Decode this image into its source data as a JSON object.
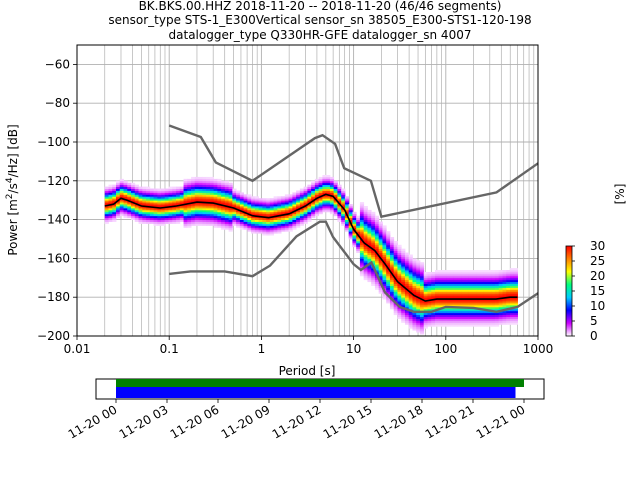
{
  "header": {
    "title_lines": [
      "BK.BKS.00.HHZ   2018-11-20 -- 2018-11-20  (46/46 segments)",
      "sensor_type STS-1_E300Vertical sensor_sn 38505_E300-STS1-120-198",
      "datalogger_type Q330HR-GFE datalogger_sn 4007"
    ]
  },
  "chart_data": {
    "type": "heatmap",
    "x_scale": "log",
    "xlim": [
      0.01,
      1000
    ],
    "ylim": [
      -200,
      -50
    ],
    "grid": true,
    "xlabel": "Period [s]",
    "ylabel": "Power [$m^2/s^4/Hz$] [dB]",
    "x_ticks": [
      0.01,
      0.1,
      1,
      10,
      100,
      1000
    ],
    "x_tick_labels": [
      "0.01",
      "0.1",
      "1",
      "10",
      "100",
      "1000"
    ],
    "y_ticks": [
      -200,
      -180,
      -160,
      -140,
      -120,
      -100,
      -80,
      -60
    ],
    "y_tick_labels": [
      "−200",
      "−180",
      "−160",
      "−140",
      "−120",
      "−100",
      "−80",
      "−60"
    ],
    "noise_models": [
      {
        "type": "NHNM",
        "color": "#666666",
        "points": [
          [
            0.1,
            -91.5
          ],
          [
            0.22,
            -97.4
          ],
          [
            0.32,
            -110.5
          ],
          [
            0.8,
            -120
          ],
          [
            3.8,
            -98
          ],
          [
            4.6,
            -96.5
          ],
          [
            6.3,
            -101
          ],
          [
            7.9,
            -113.5
          ],
          [
            15.4,
            -120
          ],
          [
            20,
            -138.5
          ],
          [
            354.8,
            -126
          ],
          [
            1000,
            -111
          ]
        ]
      },
      {
        "type": "NLNM",
        "color": "#666666",
        "points": [
          [
            0.1,
            -168
          ],
          [
            0.17,
            -166.7
          ],
          [
            0.4,
            -166.7
          ],
          [
            0.8,
            -169.2
          ],
          [
            1.24,
            -163.7
          ],
          [
            2.4,
            -148.6
          ],
          [
            4.3,
            -141.1
          ],
          [
            5,
            -141.1
          ],
          [
            6,
            -149
          ],
          [
            10,
            -163
          ],
          [
            12,
            -166
          ],
          [
            15.6,
            -162.1
          ],
          [
            21.9,
            -177.5
          ],
          [
            31.6,
            -185
          ],
          [
            45,
            -187.5
          ],
          [
            70,
            -187.5
          ],
          [
            100,
            -185
          ],
          [
            200,
            -185.5
          ],
          [
            354.8,
            -187.5
          ],
          [
            600,
            -185
          ],
          [
            1000,
            -178
          ]
        ]
      }
    ],
    "mode_curve": [
      [
        0.02,
        -133
      ],
      [
        0.025,
        -132
      ],
      [
        0.03,
        -129
      ],
      [
        0.035,
        -130
      ],
      [
        0.05,
        -133
      ],
      [
        0.08,
        -134
      ],
      [
        0.12,
        -133
      ],
      [
        0.2,
        -131
      ],
      [
        0.3,
        -131.5
      ],
      [
        0.5,
        -134
      ],
      [
        0.8,
        -138
      ],
      [
        1.2,
        -139
      ],
      [
        2,
        -137
      ],
      [
        3,
        -133
      ],
      [
        4,
        -129
      ],
      [
        5,
        -127
      ],
      [
        6,
        -128
      ],
      [
        8,
        -135
      ],
      [
        10,
        -145
      ],
      [
        13,
        -152
      ],
      [
        17,
        -156
      ],
      [
        22,
        -163
      ],
      [
        30,
        -172
      ],
      [
        45,
        -179
      ],
      [
        60,
        -182
      ],
      [
        80,
        -181
      ],
      [
        120,
        -181
      ],
      [
        200,
        -181
      ],
      [
        350,
        -181
      ],
      [
        500,
        -180
      ],
      [
        600,
        -180
      ]
    ],
    "colorbar": {
      "label": "[%]",
      "range": [
        0,
        30
      ],
      "ticks": [
        0,
        5,
        10,
        15,
        20,
        25,
        30
      ],
      "colormap": "pqlx",
      "stops": [
        "#ffffff",
        "#cc00ff",
        "#0000ff",
        "#00ccff",
        "#00ff7f",
        "#ffff00",
        "#ff7f00",
        "#ff0000"
      ]
    }
  },
  "time_coverage": {
    "tick_labels": [
      "11-20 00",
      "11-20 03",
      "11-20 06",
      "11-20 09",
      "11-20 12",
      "11-20 15",
      "11-20 18",
      "11-20 21",
      "11-21 00"
    ],
    "data_color": "#0000ff",
    "processed_color": "#008000",
    "data_end_hour": 23.5,
    "processed_end_hour": 24.0
  }
}
